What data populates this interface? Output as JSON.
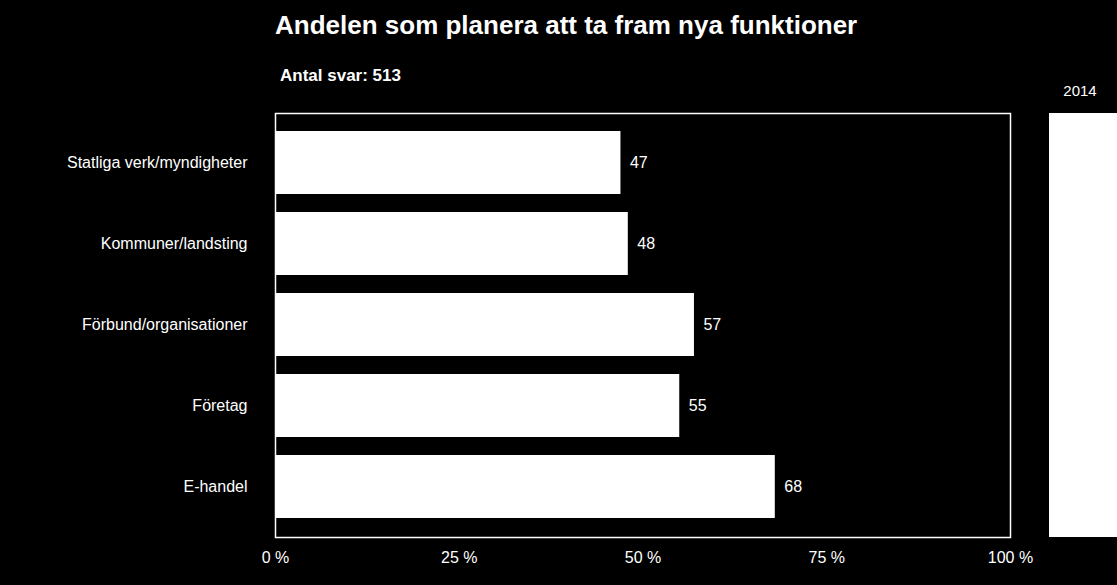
{
  "chart_data": {
    "type": "bar",
    "title": "Andelen som planera att ta fram nya funktioner",
    "subtitle": "Antal svar: 513",
    "orientation": "horizontal",
    "categories": [
      "Statliga verk/myndigheter",
      "Kommuner/landsting",
      "Förbund/organisationer",
      "Företag",
      "E-handel"
    ],
    "series": [
      {
        "name": "2014",
        "color": "#ffffff",
        "values": [
          47,
          48,
          57,
          55,
          68
        ]
      }
    ],
    "xlim": [
      0,
      100
    ],
    "xticks": [
      {
        "value": 0,
        "label": "0 %"
      },
      {
        "value": 25,
        "label": "25 %"
      },
      {
        "value": 50,
        "label": "50 %"
      },
      {
        "value": 75,
        "label": "75 %"
      },
      {
        "value": 100,
        "label": "100 %"
      }
    ],
    "grid": false,
    "legend": "right",
    "data_labels": true
  }
}
